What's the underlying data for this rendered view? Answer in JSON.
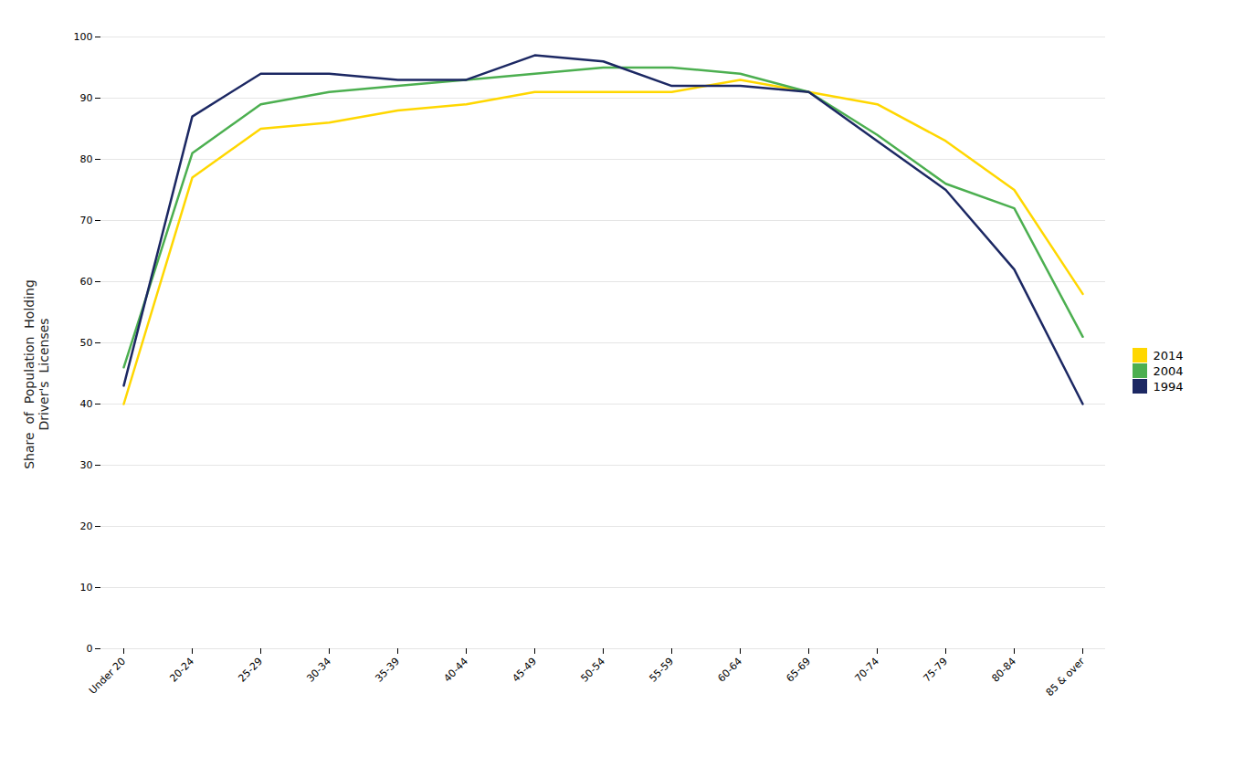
{
  "chart_data": {
    "type": "line",
    "ylabel": "Share  of  Population  Holding\nDriver's  Licenses",
    "categories": [
      "Under 20",
      "20-24",
      "25-29",
      "30-34",
      "35-39",
      "40-44",
      "45-49",
      "50-54",
      "55-59",
      "60-64",
      "65-69",
      "70-74",
      "75-79",
      "80-84",
      "85 & over"
    ],
    "series": [
      {
        "name": "2014",
        "color": "#FFD700",
        "values": [
          40,
          77,
          85,
          86,
          88,
          89,
          91,
          91,
          91,
          93,
          91,
          89,
          83,
          75,
          58
        ]
      },
      {
        "name": "2004",
        "color": "#4CAF50",
        "values": [
          46,
          81,
          89,
          91,
          92,
          93,
          94,
          95,
          95,
          94,
          91,
          84,
          76,
          72,
          51
        ]
      },
      {
        "name": "1994",
        "color": "#1C2863",
        "values": [
          43,
          87,
          94,
          94,
          93,
          93,
          97,
          96,
          92,
          92,
          91,
          83,
          75,
          62,
          40
        ]
      }
    ],
    "ylim": [
      0,
      100
    ],
    "yticks": [
      0,
      10,
      20,
      30,
      40,
      50,
      60,
      70,
      80,
      90,
      100
    ],
    "grid": true,
    "legend": "right"
  }
}
